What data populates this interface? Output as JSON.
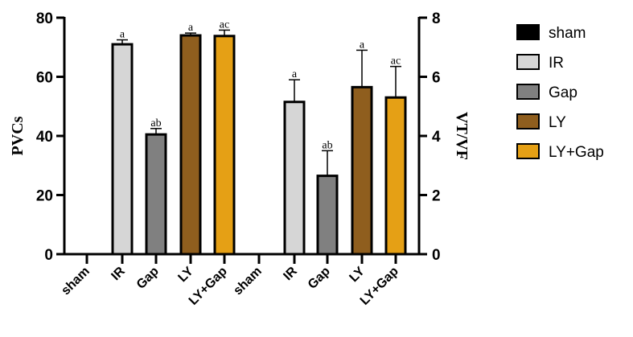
{
  "chart_data": {
    "type": "bar",
    "categories": [
      "sham",
      "IR",
      "Gap",
      "LY",
      "LY+Gap"
    ],
    "colors": {
      "sham": "#000000",
      "IR": "#d6d6d6",
      "Gap": "#808080",
      "LY": "#8f5e1e",
      "LY+Gap": "#e5a015"
    },
    "panels": [
      {
        "ylabel": "PVCs",
        "axis": "left",
        "ylim": [
          0,
          80
        ],
        "ticks": [
          "0",
          "20",
          "40",
          "60",
          "80"
        ],
        "values": [
          0,
          71,
          40.5,
          74,
          73.8
        ],
        "errors": [
          0,
          1.5,
          2,
          0.8,
          2
        ],
        "sig": [
          "",
          "a",
          "ab",
          "a",
          "ac"
        ]
      },
      {
        "ylabel": "VT/VF",
        "axis": "right",
        "ylim": [
          0,
          8
        ],
        "ticks": [
          "0",
          "2",
          "4",
          "6",
          "8"
        ],
        "values": [
          0,
          5.15,
          2.65,
          5.65,
          5.3
        ],
        "errors": [
          0,
          0.75,
          0.85,
          1.25,
          1.05
        ],
        "sig": [
          "",
          "a",
          "ab",
          "a",
          "ac"
        ]
      }
    ],
    "legend": {
      "position": "right",
      "entries": [
        "sham",
        "IR",
        "Gap",
        "LY",
        "LY+Gap"
      ]
    },
    "grid": false
  }
}
